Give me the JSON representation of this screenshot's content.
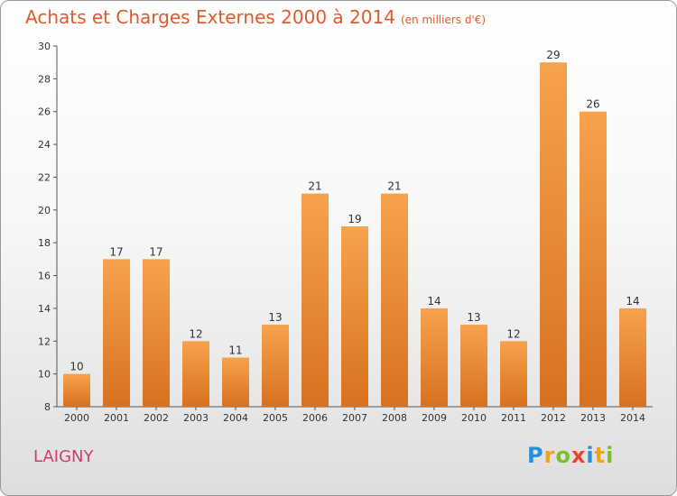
{
  "title": "Achats et Charges Externes 2000 à 2014",
  "subtitle": "(en milliers d'€)",
  "commune": "LAIGNY",
  "logo": {
    "letters": [
      "P",
      "r",
      "o",
      "x",
      "i",
      "t",
      "i"
    ],
    "colors": [
      "#2a8fd6",
      "#f0a21c",
      "#7bbf2a",
      "#e8452c",
      "#2a8fd6",
      "#f0a21c",
      "#7bbf2a"
    ]
  },
  "chart_data": {
    "type": "bar",
    "categories": [
      "2000",
      "2001",
      "2002",
      "2003",
      "2004",
      "2005",
      "2006",
      "2007",
      "2008",
      "2009",
      "2010",
      "2011",
      "2012",
      "2013",
      "2014"
    ],
    "values": [
      10,
      17,
      17,
      12,
      11,
      13,
      21,
      19,
      21,
      14,
      13,
      12,
      29,
      26,
      14
    ],
    "ylim": [
      8,
      30
    ],
    "yticks": [
      8,
      10,
      12,
      14,
      16,
      18,
      20,
      22,
      24,
      26,
      28,
      30
    ],
    "bar_color": "#f08a2c",
    "grid": false
  }
}
